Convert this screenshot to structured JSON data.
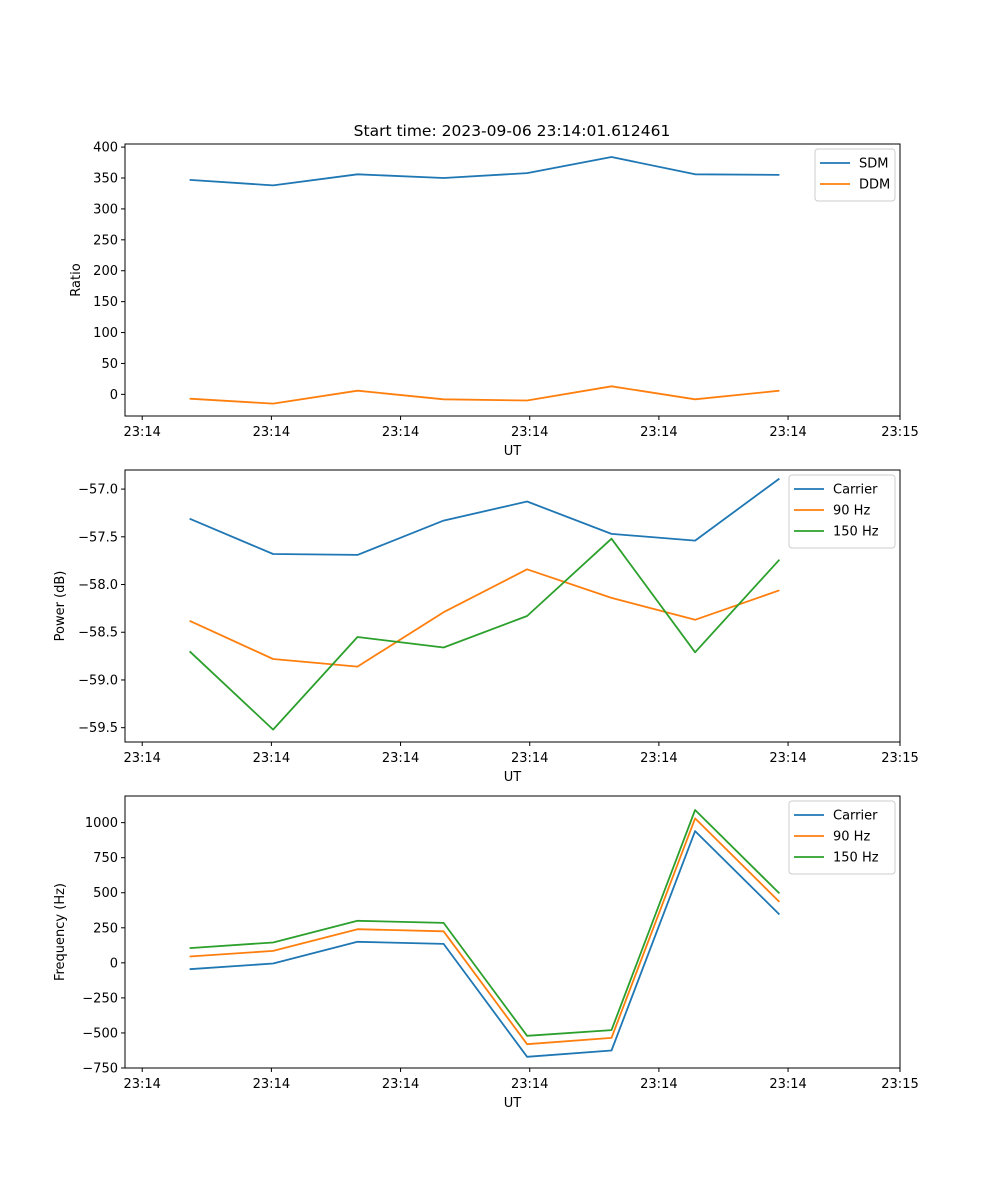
{
  "title": "Start time: 2023-09-06 23:14:01.612461",
  "colors": {
    "blue": "#1f77b4",
    "orange": "#ff7f0e",
    "green": "#2ca02c"
  },
  "chart_data": [
    {
      "type": "line",
      "title": "Start time: 2023-09-06 23:14:01.612461",
      "xlabel": "UT",
      "ylabel": "Ratio",
      "xlim": [
        0,
        9
      ],
      "ylim": [
        -35,
        405
      ],
      "x": [
        0.75,
        1.72,
        2.7,
        3.7,
        4.67,
        5.65,
        6.62,
        7.6
      ],
      "xticks": [
        0.2,
        1.7,
        3.2,
        4.7,
        6.2,
        7.7,
        9.0
      ],
      "xtick_labels": [
        "23:14",
        "23:14",
        "23:14",
        "23:14",
        "23:14",
        "23:14",
        "23:15"
      ],
      "yticks": [
        0,
        50,
        100,
        150,
        200,
        250,
        300,
        350,
        400
      ],
      "ytick_labels": [
        "0",
        "50",
        "100",
        "150",
        "200",
        "250",
        "300",
        "350",
        "400"
      ],
      "legend_position": "top-right",
      "series": [
        {
          "name": "SDM",
          "color": "#1f77b4",
          "values": [
            347,
            338,
            356,
            350,
            358,
            384,
            356,
            355
          ]
        },
        {
          "name": "DDM",
          "color": "#ff7f0e",
          "values": [
            -7,
            -15,
            6,
            -8,
            -10,
            13,
            -8,
            6
          ]
        }
      ]
    },
    {
      "type": "line",
      "title": "",
      "xlabel": "UT",
      "ylabel": "Power (dB)",
      "xlim": [
        0,
        9
      ],
      "ylim": [
        -59.65,
        -56.8
      ],
      "x": [
        0.75,
        1.72,
        2.7,
        3.7,
        4.67,
        5.65,
        6.62,
        7.6
      ],
      "xticks": [
        0.2,
        1.7,
        3.2,
        4.7,
        6.2,
        7.7,
        9.0
      ],
      "xtick_labels": [
        "23:14",
        "23:14",
        "23:14",
        "23:14",
        "23:14",
        "23:14",
        "23:15"
      ],
      "yticks": [
        -59.5,
        -59.0,
        -58.5,
        -58.0,
        -57.5,
        -57.0
      ],
      "ytick_labels": [
        "−59.5",
        "−59.0",
        "−58.5",
        "−58.0",
        "−57.5",
        "−57.0"
      ],
      "legend_position": "top-right",
      "series": [
        {
          "name": "Carrier",
          "color": "#1f77b4",
          "values": [
            -57.31,
            -57.68,
            -57.69,
            -57.33,
            -57.13,
            -57.47,
            -57.54,
            -56.89
          ]
        },
        {
          "name": "90 Hz",
          "color": "#ff7f0e",
          "values": [
            -58.38,
            -58.78,
            -58.86,
            -58.29,
            -57.84,
            -58.14,
            -58.37,
            -58.06
          ]
        },
        {
          "name": "150 Hz",
          "color": "#2ca02c",
          "values": [
            -58.7,
            -59.52,
            -58.55,
            -58.66,
            -58.33,
            -57.52,
            -58.71,
            -57.74
          ]
        }
      ]
    },
    {
      "type": "line",
      "title": "",
      "xlabel": "UT",
      "ylabel": "Frequency (Hz)",
      "xlim": [
        0,
        9
      ],
      "ylim": [
        -750,
        1190
      ],
      "x": [
        0.75,
        1.72,
        2.7,
        3.7,
        4.67,
        5.65,
        6.62,
        7.6
      ],
      "xticks": [
        0.2,
        1.7,
        3.2,
        4.7,
        6.2,
        7.7,
        9.0
      ],
      "xtick_labels": [
        "23:14",
        "23:14",
        "23:14",
        "23:14",
        "23:14",
        "23:14",
        "23:15"
      ],
      "yticks": [
        -750,
        -500,
        -250,
        0,
        250,
        500,
        750,
        1000
      ],
      "ytick_labels": [
        "−750",
        "−500",
        "−250",
        "0",
        "250",
        "500",
        "750",
        "1000"
      ],
      "legend_position": "top-right",
      "series": [
        {
          "name": "Carrier",
          "color": "#1f77b4",
          "values": [
            -45,
            -5,
            150,
            135,
            -670,
            -625,
            940,
            345
          ]
        },
        {
          "name": "90 Hz",
          "color": "#ff7f0e",
          "values": [
            45,
            85,
            240,
            225,
            -580,
            -535,
            1030,
            435
          ]
        },
        {
          "name": "150 Hz",
          "color": "#2ca02c",
          "values": [
            105,
            145,
            300,
            285,
            -520,
            -480,
            1090,
            495
          ]
        }
      ]
    }
  ]
}
